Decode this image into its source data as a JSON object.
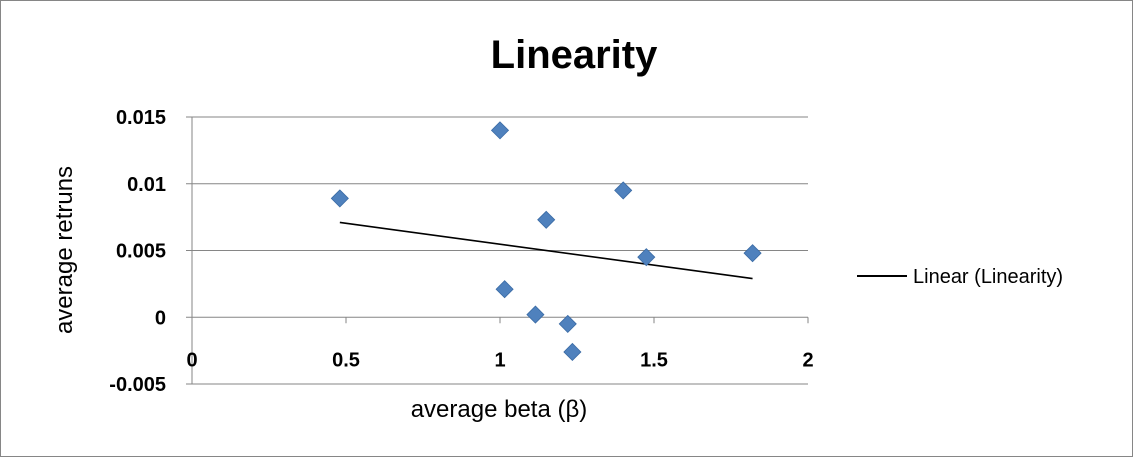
{
  "chart_data": {
    "type": "scatter",
    "title": "Linearity",
    "xlabel": "average beta (β)",
    "ylabel": "average retruns",
    "xlim": [
      0,
      2
    ],
    "ylim": [
      -0.005,
      0.015
    ],
    "x_ticks": [
      {
        "value": 0,
        "label": "0"
      },
      {
        "value": 0.5,
        "label": "0.5"
      },
      {
        "value": 1,
        "label": "1"
      },
      {
        "value": 1.5,
        "label": "1.5"
      },
      {
        "value": 2,
        "label": "2"
      }
    ],
    "y_ticks": [
      {
        "value": -0.005,
        "label": "-0.005"
      },
      {
        "value": 0,
        "label": "0"
      },
      {
        "value": 0.005,
        "label": "0.005"
      },
      {
        "value": 0.01,
        "label": "0.01"
      },
      {
        "value": 0.015,
        "label": "0.015"
      }
    ],
    "grid": "horizontal",
    "legend_position": "right",
    "series": [
      {
        "marker": "diamond",
        "color": "#4F81BD",
        "points": [
          {
            "x": 0.48,
            "y": 0.0089
          },
          {
            "x": 1.0,
            "y": 0.014
          },
          {
            "x": 1.015,
            "y": 0.0021
          },
          {
            "x": 1.115,
            "y": 0.0002
          },
          {
            "x": 1.15,
            "y": 0.0073
          },
          {
            "x": 1.22,
            "y": -0.0005
          },
          {
            "x": 1.235,
            "y": -0.0026
          },
          {
            "x": 1.4,
            "y": 0.0095
          },
          {
            "x": 1.475,
            "y": 0.0045
          },
          {
            "x": 1.82,
            "y": 0.0048
          }
        ]
      }
    ],
    "trendline": {
      "name": "Linear (Linearity)",
      "color": "#000000",
      "points": [
        {
          "x": 0.48,
          "y": 0.0071
        },
        {
          "x": 1.82,
          "y": 0.0029
        }
      ]
    }
  }
}
